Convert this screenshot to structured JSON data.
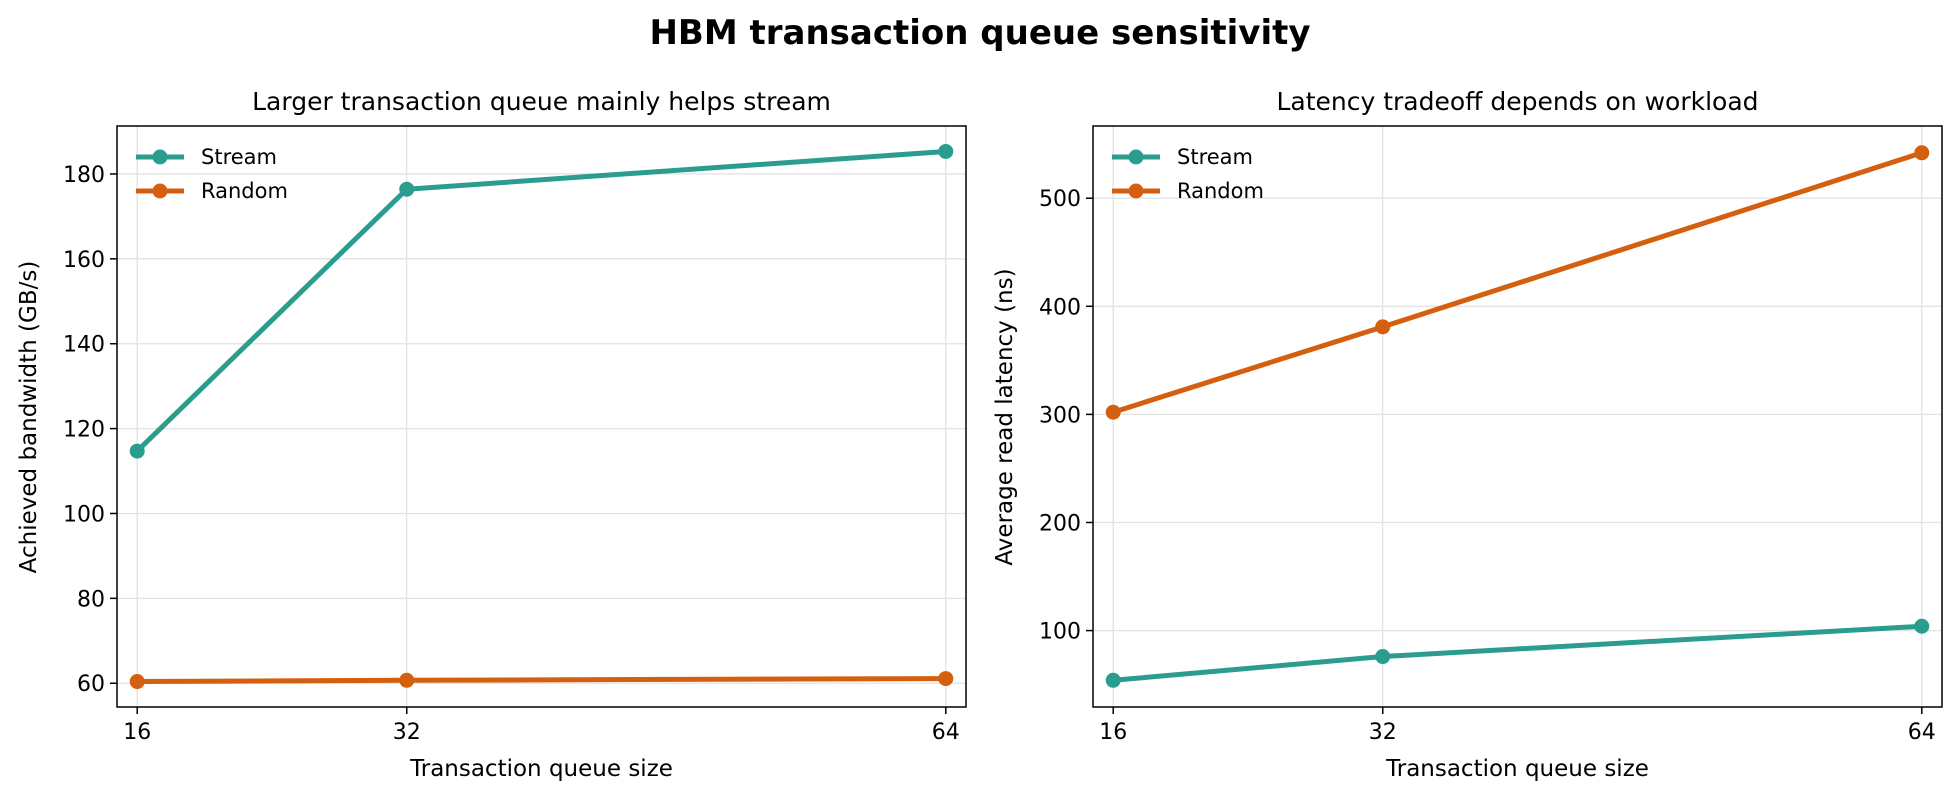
{
  "figure": {
    "title": "HBM transaction queue sensitivity"
  },
  "chart_data": [
    {
      "type": "line",
      "title": "Larger transaction queue mainly helps stream",
      "xlabel": "Transaction queue size",
      "ylabel": "Achieved bandwidth (GB/s)",
      "x": [
        16,
        32,
        64
      ],
      "xticks": [
        16,
        32,
        64
      ],
      "xlim": [
        14.8,
        65.2
      ],
      "ylim": [
        54.4,
        191.3
      ],
      "yticks": [
        60,
        80,
        100,
        120,
        140,
        160,
        180
      ],
      "grid": true,
      "legend_position": "upper-left",
      "series": [
        {
          "name": "Stream",
          "color": "#2a9d8f",
          "values": [
            114.7,
            176.4,
            185.3
          ]
        },
        {
          "name": "Random",
          "color": "#d45f0e",
          "values": [
            60.4,
            60.7,
            61.1
          ]
        }
      ]
    },
    {
      "type": "line",
      "title": "Latency tradeoff depends on workload",
      "xlabel": "Transaction queue size",
      "ylabel": "Average read latency (ns)",
      "x": [
        16,
        32,
        64
      ],
      "xticks": [
        16,
        32,
        64
      ],
      "xlim": [
        14.8,
        65.2
      ],
      "ylim": [
        29.3,
        566.8
      ],
      "yticks": [
        100,
        200,
        300,
        400,
        500
      ],
      "grid": true,
      "legend_position": "upper-left",
      "series": [
        {
          "name": "Stream",
          "color": "#2a9d8f",
          "values": [
            54.0,
            76.0,
            104.0
          ]
        },
        {
          "name": "Random",
          "color": "#d45f0e",
          "values": [
            302.0,
            381.0,
            542.0
          ]
        }
      ]
    }
  ]
}
